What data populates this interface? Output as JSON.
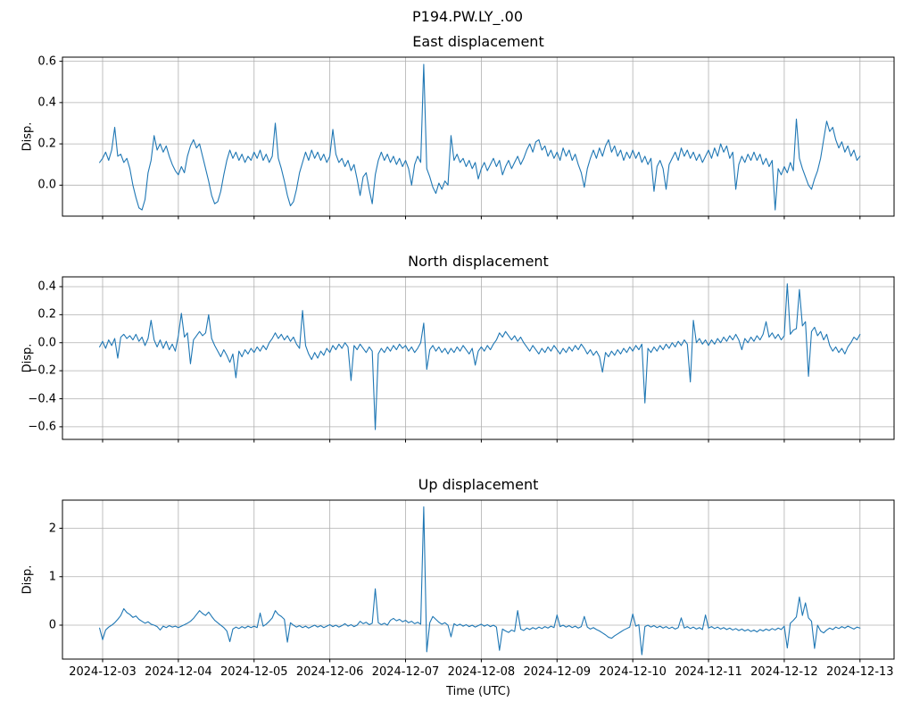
{
  "figure": {
    "suptitle": "P194.PW.LY_.00",
    "background": "#ffffff",
    "text_color": "#000000"
  },
  "chart_data": {
    "type": "line",
    "suptitle": "P194.PW.LY_.00",
    "xlabel": "Time (UTC)",
    "line_color": "#1f77b4",
    "grid_color": "#b0b0b0",
    "spine_color": "#000000",
    "legend": "none",
    "grid": "on",
    "x": {
      "start": -0.04,
      "step": 0.04,
      "count": 252,
      "unit": "days since 2024-12-03 00:00 UTC"
    },
    "xlim": [
      -0.53,
      10.45
    ],
    "xtick_values": [
      0,
      1,
      2,
      3,
      4,
      5,
      6,
      7,
      8,
      9,
      10
    ],
    "xtick_labels": [
      "2024-12-03",
      "2024-12-04",
      "2024-12-05",
      "2024-12-06",
      "2024-12-07",
      "2024-12-08",
      "2024-12-09",
      "2024-12-10",
      "2024-12-11",
      "2024-12-12",
      "2024-12-13"
    ],
    "subplots": [
      {
        "title": "East displacement",
        "ylabel": "Disp.",
        "ylim": [
          -0.15,
          0.62
        ],
        "ytick_values": [
          0.0,
          0.2,
          0.4,
          0.6
        ],
        "ytick_labels": [
          "0.0",
          "0.2",
          "0.4",
          "0.6"
        ],
        "y": [
          0.11,
          0.13,
          0.16,
          0.12,
          0.17,
          0.28,
          0.14,
          0.15,
          0.11,
          0.13,
          0.08,
          0.0,
          -0.06,
          -0.11,
          -0.12,
          -0.07,
          0.06,
          0.12,
          0.24,
          0.17,
          0.2,
          0.16,
          0.19,
          0.14,
          0.1,
          0.07,
          0.05,
          0.09,
          0.06,
          0.14,
          0.19,
          0.22,
          0.18,
          0.2,
          0.14,
          0.08,
          0.02,
          -0.05,
          -0.09,
          -0.08,
          -0.03,
          0.05,
          0.12,
          0.17,
          0.13,
          0.16,
          0.12,
          0.15,
          0.11,
          0.14,
          0.12,
          0.16,
          0.13,
          0.17,
          0.12,
          0.15,
          0.11,
          0.14,
          0.3,
          0.13,
          0.08,
          0.02,
          -0.05,
          -0.1,
          -0.08,
          -0.02,
          0.06,
          0.11,
          0.16,
          0.12,
          0.17,
          0.13,
          0.16,
          0.12,
          0.15,
          0.11,
          0.14,
          0.27,
          0.15,
          0.11,
          0.13,
          0.09,
          0.12,
          0.07,
          0.1,
          0.03,
          -0.05,
          0.04,
          0.06,
          -0.02,
          -0.09,
          0.05,
          0.12,
          0.16,
          0.12,
          0.15,
          0.11,
          0.14,
          0.1,
          0.13,
          0.09,
          0.12,
          0.08,
          0.0,
          0.1,
          0.14,
          0.11,
          0.585,
          0.08,
          0.04,
          -0.01,
          -0.04,
          0.01,
          -0.02,
          0.02,
          0.0,
          0.24,
          0.12,
          0.15,
          0.11,
          0.13,
          0.09,
          0.12,
          0.08,
          0.11,
          0.03,
          0.08,
          0.11,
          0.07,
          0.1,
          0.13,
          0.09,
          0.12,
          0.05,
          0.09,
          0.12,
          0.08,
          0.11,
          0.14,
          0.1,
          0.13,
          0.17,
          0.2,
          0.16,
          0.21,
          0.22,
          0.17,
          0.19,
          0.14,
          0.17,
          0.13,
          0.16,
          0.12,
          0.18,
          0.14,
          0.17,
          0.12,
          0.15,
          0.1,
          0.06,
          -0.01,
          0.08,
          0.13,
          0.17,
          0.13,
          0.18,
          0.14,
          0.19,
          0.22,
          0.16,
          0.19,
          0.14,
          0.17,
          0.12,
          0.16,
          0.13,
          0.17,
          0.13,
          0.16,
          0.11,
          0.14,
          0.1,
          0.13,
          -0.03,
          0.09,
          0.12,
          0.08,
          -0.02,
          0.1,
          0.13,
          0.16,
          0.12,
          0.18,
          0.14,
          0.17,
          0.13,
          0.16,
          0.12,
          0.15,
          0.11,
          0.14,
          0.17,
          0.13,
          0.18,
          0.14,
          0.2,
          0.16,
          0.19,
          0.13,
          0.16,
          -0.02,
          0.1,
          0.14,
          0.11,
          0.15,
          0.12,
          0.16,
          0.12,
          0.15,
          0.1,
          0.13,
          0.09,
          0.12,
          -0.12,
          0.08,
          0.05,
          0.09,
          0.06,
          0.11,
          0.07,
          0.32,
          0.13,
          0.08,
          0.04,
          0.0,
          -0.02,
          0.03,
          0.07,
          0.13,
          0.22,
          0.31,
          0.26,
          0.28,
          0.22,
          0.18,
          0.21,
          0.16,
          0.19,
          0.14,
          0.17,
          0.12,
          0.14
        ]
      },
      {
        "title": "North displacement",
        "ylabel": "Disp.",
        "ylim": [
          -0.69,
          0.47
        ],
        "ytick_values": [
          -0.6,
          -0.4,
          -0.2,
          0.0,
          0.2,
          0.4
        ],
        "ytick_labels": [
          "−0.6",
          "−0.4",
          "−0.2",
          "0.0",
          "0.2",
          "0.4"
        ],
        "y": [
          -0.03,
          0.01,
          -0.04,
          0.02,
          -0.02,
          0.03,
          -0.11,
          0.04,
          0.06,
          0.03,
          0.05,
          0.02,
          0.06,
          0.01,
          0.04,
          -0.02,
          0.03,
          0.16,
          0.02,
          -0.03,
          0.02,
          -0.04,
          0.01,
          -0.05,
          -0.01,
          -0.06,
          0.05,
          0.21,
          0.04,
          0.07,
          -0.15,
          0.02,
          0.05,
          0.08,
          0.05,
          0.07,
          0.2,
          0.03,
          -0.02,
          -0.06,
          -0.1,
          -0.05,
          -0.09,
          -0.14,
          -0.08,
          -0.25,
          -0.06,
          -0.1,
          -0.05,
          -0.08,
          -0.04,
          -0.07,
          -0.03,
          -0.06,
          -0.02,
          -0.05,
          0.0,
          0.03,
          0.07,
          0.03,
          0.06,
          0.02,
          0.05,
          0.01,
          0.04,
          -0.01,
          -0.04,
          0.23,
          -0.02,
          -0.08,
          -0.12,
          -0.07,
          -0.11,
          -0.06,
          -0.09,
          -0.04,
          -0.07,
          -0.02,
          -0.05,
          -0.01,
          -0.04,
          0.0,
          -0.03,
          -0.27,
          -0.02,
          -0.05,
          -0.01,
          -0.04,
          -0.07,
          -0.03,
          -0.06,
          -0.62,
          -0.08,
          -0.04,
          -0.07,
          -0.03,
          -0.06,
          -0.02,
          -0.05,
          -0.01,
          -0.04,
          -0.02,
          -0.06,
          -0.03,
          -0.07,
          -0.04,
          0.0,
          0.14,
          -0.19,
          -0.05,
          -0.02,
          -0.06,
          -0.03,
          -0.07,
          -0.04,
          -0.08,
          -0.04,
          -0.07,
          -0.03,
          -0.06,
          -0.02,
          -0.05,
          -0.08,
          -0.04,
          -0.16,
          -0.06,
          -0.03,
          -0.06,
          -0.02,
          -0.05,
          -0.01,
          0.02,
          0.07,
          0.04,
          0.08,
          0.05,
          0.02,
          0.05,
          0.01,
          0.04,
          0.0,
          -0.03,
          -0.06,
          -0.02,
          -0.05,
          -0.08,
          -0.04,
          -0.07,
          -0.03,
          -0.06,
          -0.02,
          -0.05,
          -0.08,
          -0.04,
          -0.07,
          -0.03,
          -0.06,
          -0.02,
          -0.05,
          -0.01,
          -0.04,
          -0.08,
          -0.05,
          -0.09,
          -0.06,
          -0.1,
          -0.21,
          -0.07,
          -0.1,
          -0.06,
          -0.09,
          -0.05,
          -0.08,
          -0.04,
          -0.07,
          -0.03,
          -0.06,
          -0.02,
          -0.05,
          -0.01,
          -0.43,
          -0.04,
          -0.07,
          -0.03,
          -0.06,
          -0.02,
          -0.05,
          -0.01,
          -0.04,
          0.0,
          -0.03,
          0.01,
          -0.02,
          0.02,
          -0.01,
          -0.28,
          0.16,
          0.0,
          0.03,
          -0.01,
          0.02,
          -0.02,
          0.02,
          -0.01,
          0.03,
          0.0,
          0.04,
          0.01,
          0.05,
          0.02,
          0.06,
          0.02,
          -0.05,
          0.03,
          0.0,
          0.04,
          0.01,
          0.05,
          0.02,
          0.06,
          0.15,
          0.04,
          0.07,
          0.03,
          0.06,
          0.02,
          0.05,
          0.42,
          0.06,
          0.09,
          0.1,
          0.38,
          0.12,
          0.15,
          -0.24,
          0.08,
          0.11,
          0.05,
          0.08,
          0.02,
          0.06,
          -0.02,
          -0.06,
          -0.03,
          -0.07,
          -0.04,
          -0.08,
          -0.03,
          0.0,
          0.04,
          0.02,
          0.06
        ]
      },
      {
        "title": "Up displacement",
        "ylabel": "Disp.",
        "ylim": [
          -0.7,
          2.58
        ],
        "ytick_values": [
          0,
          1,
          2
        ],
        "ytick_labels": [
          "0",
          "1",
          "2"
        ],
        "y": [
          -0.06,
          -0.3,
          -0.1,
          -0.04,
          0.0,
          0.05,
          0.12,
          0.2,
          0.34,
          0.26,
          0.22,
          0.16,
          0.19,
          0.12,
          0.08,
          0.04,
          0.07,
          0.02,
          0.0,
          -0.03,
          -0.1,
          -0.02,
          -0.05,
          -0.01,
          -0.04,
          -0.02,
          -0.05,
          -0.02,
          0.01,
          0.04,
          0.08,
          0.14,
          0.22,
          0.3,
          0.24,
          0.2,
          0.27,
          0.18,
          0.1,
          0.05,
          0.0,
          -0.05,
          -0.12,
          -0.34,
          -0.08,
          -0.04,
          -0.07,
          -0.03,
          -0.06,
          -0.02,
          -0.05,
          -0.02,
          -0.05,
          0.25,
          -0.02,
          0.02,
          0.08,
          0.15,
          0.3,
          0.22,
          0.18,
          0.12,
          -0.35,
          0.05,
          0.0,
          -0.04,
          -0.01,
          -0.05,
          -0.02,
          -0.06,
          -0.03,
          0.0,
          -0.04,
          -0.01,
          -0.05,
          -0.02,
          0.01,
          -0.03,
          0.0,
          -0.04,
          -0.01,
          0.03,
          -0.02,
          0.01,
          -0.03,
          0.0,
          0.08,
          0.03,
          0.06,
          0.01,
          0.04,
          0.75,
          0.05,
          0.01,
          0.04,
          0.0,
          0.1,
          0.14,
          0.09,
          0.12,
          0.07,
          0.1,
          0.05,
          0.08,
          0.03,
          0.06,
          0.02,
          2.44,
          -0.55,
          0.05,
          0.18,
          0.12,
          0.06,
          0.02,
          0.05,
          0.0,
          -0.24,
          0.03,
          -0.01,
          0.02,
          -0.02,
          0.01,
          -0.03,
          0.0,
          -0.04,
          -0.01,
          0.02,
          -0.02,
          0.01,
          -0.03,
          0.0,
          -0.04,
          -0.52,
          -0.08,
          -0.12,
          -0.15,
          -0.1,
          -0.13,
          0.3,
          -0.08,
          -0.11,
          -0.06,
          -0.09,
          -0.05,
          -0.08,
          -0.04,
          -0.07,
          -0.03,
          -0.06,
          -0.02,
          -0.05,
          0.21,
          -0.03,
          0.0,
          -0.04,
          -0.01,
          -0.05,
          -0.02,
          -0.06,
          -0.03,
          0.18,
          -0.04,
          -0.08,
          -0.05,
          -0.09,
          -0.12,
          -0.16,
          -0.2,
          -0.25,
          -0.27,
          -0.22,
          -0.18,
          -0.14,
          -0.1,
          -0.07,
          -0.04,
          0.23,
          -0.02,
          0.01,
          -0.61,
          -0.03,
          0.0,
          -0.04,
          -0.01,
          -0.05,
          -0.02,
          -0.06,
          -0.03,
          -0.07,
          -0.04,
          -0.08,
          -0.05,
          0.15,
          -0.06,
          -0.03,
          -0.07,
          -0.04,
          -0.08,
          -0.05,
          -0.09,
          0.21,
          -0.06,
          -0.03,
          -0.07,
          -0.04,
          -0.08,
          -0.05,
          -0.09,
          -0.06,
          -0.1,
          -0.07,
          -0.11,
          -0.08,
          -0.12,
          -0.09,
          -0.13,
          -0.1,
          -0.14,
          -0.09,
          -0.12,
          -0.08,
          -0.11,
          -0.07,
          -0.1,
          -0.06,
          -0.09,
          -0.02,
          -0.47,
          0.04,
          0.1,
          0.17,
          0.58,
          0.2,
          0.46,
          0.15,
          0.08,
          -0.48,
          0.0,
          -0.12,
          -0.16,
          -0.1,
          -0.06,
          -0.09,
          -0.04,
          -0.07,
          -0.03,
          -0.06,
          -0.02,
          -0.05,
          -0.08,
          -0.04,
          -0.06
        ]
      }
    ]
  }
}
